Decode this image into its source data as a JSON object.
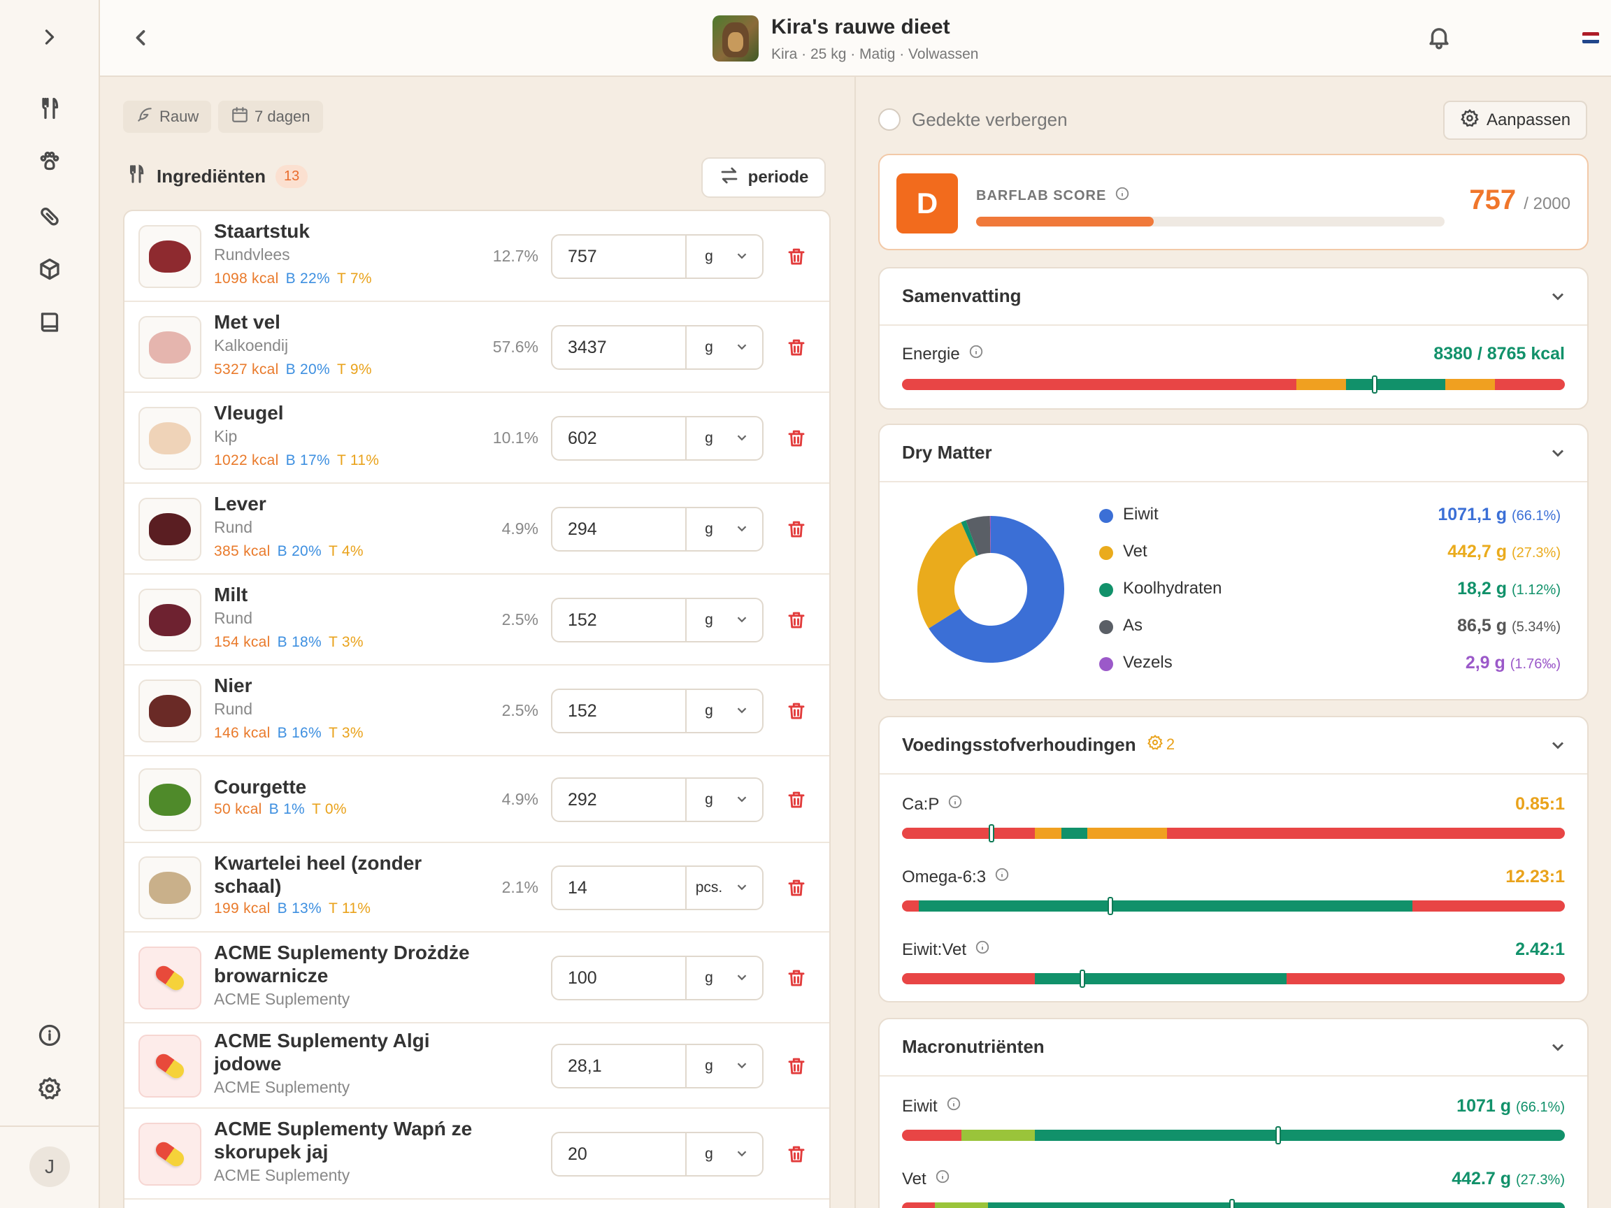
{
  "header": {
    "title": "Kira's rauwe dieet",
    "subtitle": "Kira · 25 kg · Matig · Volwassen"
  },
  "sidebar": {
    "items": [
      "expand-icon",
      "cutlery-icon",
      "paw-icon",
      "pill-icon",
      "box-icon",
      "book-icon",
      "info-icon",
      "settings-icon"
    ],
    "avatar_initial": "J"
  },
  "chips": {
    "type": "Rauw",
    "period": "7 dagen"
  },
  "ingredients": {
    "heading": "Ingrediënten",
    "count": "13",
    "period_button": "periode",
    "items": [
      {
        "name": "Staartstuk",
        "sub": "Rundvlees",
        "kcal": "1098 kcal",
        "b": "B 22%",
        "t": "T 7%",
        "pct": "12.7%",
        "qty": "757",
        "unit": "g",
        "color": "#8e2a2f"
      },
      {
        "name": "Met vel",
        "sub": "Kalkoendij",
        "kcal": "5327 kcal",
        "b": "B 20%",
        "t": "T 9%",
        "pct": "57.6%",
        "qty": "3437",
        "unit": "g",
        "color": "#e5b5ae"
      },
      {
        "name": "Vleugel",
        "sub": "Kip",
        "kcal": "1022 kcal",
        "b": "B 17%",
        "t": "T 11%",
        "pct": "10.1%",
        "qty": "602",
        "unit": "g",
        "color": "#efd3b8"
      },
      {
        "name": "Lever",
        "sub": "Rund",
        "kcal": "385 kcal",
        "b": "B 20%",
        "t": "T 4%",
        "pct": "4.9%",
        "qty": "294",
        "unit": "g",
        "color": "#5a1e22"
      },
      {
        "name": "Milt",
        "sub": "Rund",
        "kcal": "154 kcal",
        "b": "B 18%",
        "t": "T 3%",
        "pct": "2.5%",
        "qty": "152",
        "unit": "g",
        "color": "#6e2230"
      },
      {
        "name": "Nier",
        "sub": "Rund",
        "kcal": "146 kcal",
        "b": "B 16%",
        "t": "T 3%",
        "pct": "2.5%",
        "qty": "152",
        "unit": "g",
        "color": "#6a2a26"
      },
      {
        "name": "Courgette",
        "sub": "",
        "kcal": "50 kcal",
        "b": "B 1%",
        "t": "T 0%",
        "pct": "4.9%",
        "qty": "292",
        "unit": "g",
        "color": "#4f8a2a"
      },
      {
        "name": "Kwartelei heel (zonder schaal)",
        "sub": "",
        "kcal": "199 kcal",
        "b": "B 13%",
        "t": "T 11%",
        "pct": "2.1%",
        "qty": "14",
        "unit": "pcs.",
        "color": "#c9b08a"
      },
      {
        "name": "ACME Suplementy Drożdże browarnicze",
        "sub": "ACME Suplementy",
        "kcal": "",
        "b": "",
        "t": "",
        "pct": "",
        "qty": "100",
        "unit": "g",
        "color": "supp"
      },
      {
        "name": "ACME Suplementy Algi jodowe",
        "sub": "ACME Suplementy",
        "kcal": "",
        "b": "",
        "t": "",
        "pct": "",
        "qty": "28,1",
        "unit": "g",
        "color": "supp"
      },
      {
        "name": "ACME Suplementy Wapń ze skorupek jaj",
        "sub": "ACME Suplementy",
        "kcal": "",
        "b": "",
        "t": "",
        "pct": "",
        "qty": "20",
        "unit": "g",
        "color": "supp"
      }
    ]
  },
  "right": {
    "hide_covered": "Gedekte verbergen",
    "customize": "Aanpassen",
    "score": {
      "grade": "D",
      "label": "BARFLAB SCORE",
      "value": "757",
      "max": "/ 2000",
      "fraction": 0.3785
    },
    "summary": {
      "title": "Samenvatting",
      "energy_label": "Energie",
      "energy_value": "8380 / 8765 kcal"
    },
    "dry_matter": {
      "title": "Dry Matter",
      "items": [
        {
          "name": "Eiwit",
          "value": "1071,1 g",
          "pct": "(66.1%)",
          "share": 66.1,
          "color": "#3b6fd6"
        },
        {
          "name": "Vet",
          "value": "442,7 g",
          "pct": "(27.3%)",
          "share": 27.3,
          "color": "#eaab1c"
        },
        {
          "name": "Koolhydraten",
          "value": "18,2 g",
          "pct": "(1.12%)",
          "share": 1.12,
          "color": "#11916a"
        },
        {
          "name": "As",
          "value": "86,5 g",
          "pct": "(5.34%)",
          "share": 5.34,
          "color": "#5a5f66"
        },
        {
          "name": "Vezels",
          "value": "2,9 g",
          "pct": "(1.76‰)",
          "share": 0.18,
          "color": "#9b59c9"
        }
      ]
    },
    "ratios": {
      "title": "Voedingsstofverhoudingen",
      "badge": "2",
      "items": [
        {
          "label": "Ca:P",
          "value": "0.85:1",
          "color": "#e9a21b"
        },
        {
          "label": "Omega-6:3",
          "value": "12.23:1",
          "color": "#e9a21b"
        },
        {
          "label": "Eiwit:Vet",
          "value": "2.42:1",
          "color": "#11916a"
        }
      ]
    },
    "macros": {
      "title": "Macronutriënten",
      "items": [
        {
          "label": "Eiwit",
          "value": "1071 g",
          "pct": "(66.1%)"
        },
        {
          "label": "Vet",
          "value": "442.7 g",
          "pct": "(27.3%)"
        }
      ]
    }
  },
  "colors": {
    "accent": "#f26b1d",
    "red": "#e84545",
    "green": "#11916a",
    "orange": "#f0a020",
    "lime": "#9ac43a"
  }
}
